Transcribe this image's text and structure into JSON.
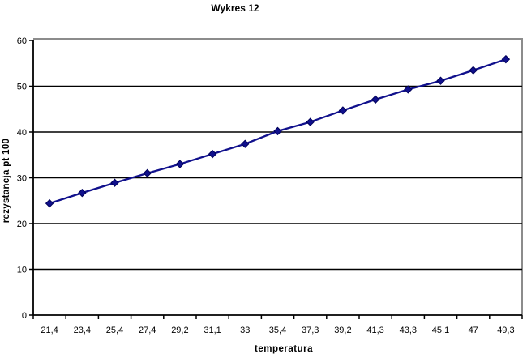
{
  "title": "Wykres 12",
  "chart_data": {
    "type": "line",
    "title": "Wykres 12",
    "xlabel": "temperatura",
    "ylabel": "rezystancja pt 100",
    "categories": [
      "21,4",
      "23,4",
      "25,4",
      "27,4",
      "29,2",
      "31,1",
      "33",
      "35,4",
      "37,3",
      "39,2",
      "41,3",
      "43,3",
      "45,1",
      "47",
      "49,3"
    ],
    "values": [
      24.4,
      26.7,
      28.9,
      31.0,
      33.0,
      35.2,
      37.4,
      40.2,
      42.2,
      44.7,
      47.1,
      49.3,
      51.2,
      53.5,
      55.9
    ],
    "ylim": [
      0,
      60
    ],
    "ytick_step": 10,
    "grid": true,
    "legend_position": "none",
    "marker": "diamond",
    "colors": {
      "series": "#10108C",
      "marker_edge": "#00005A",
      "gridline": "#000000",
      "axis": "#000000",
      "plot_border": "#8C8C8C",
      "background": "#FFFFFF"
    }
  }
}
